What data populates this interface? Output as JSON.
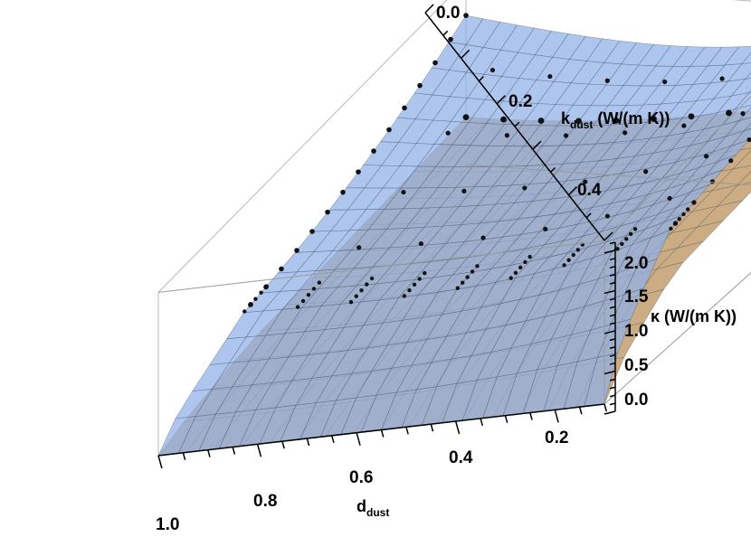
{
  "chart_data": {
    "type": "surface3d",
    "axes": {
      "d": {
        "label_main": "d",
        "label_sub": "dust",
        "range": [
          0.1,
          1.0
        ],
        "ticks": [
          {
            "value": 1.0,
            "label": "1.0"
          },
          {
            "value": 0.8,
            "label": "0.8"
          },
          {
            "value": 0.6,
            "label": "0.6"
          },
          {
            "value": 0.4,
            "label": "0.4"
          },
          {
            "value": 0.2,
            "label": "0.2"
          }
        ]
      },
      "k": {
        "label_main": "k",
        "label_sub": "dust",
        "label_unit": " (W/(m K))",
        "range": [
          0.0,
          0.5
        ],
        "ticks": [
          {
            "value": 0.0,
            "label": "0.0"
          },
          {
            "value": 0.2,
            "label": "0.2"
          },
          {
            "value": 0.4,
            "label": "0.4"
          }
        ]
      },
      "kappa": {
        "label": "κ (W/(m K))",
        "range": [
          0.0,
          2.0
        ],
        "ticks": [
          {
            "value": 0.0,
            "label": "0.0"
          },
          {
            "value": 0.5,
            "label": "0.5"
          },
          {
            "value": 1.0,
            "label": "1.0"
          },
          {
            "value": 1.5,
            "label": "1.5"
          },
          {
            "value": 2.0,
            "label": "2.0"
          }
        ]
      }
    },
    "surfaces": [
      {
        "color": "#8fb0e8",
        "grid": true,
        "kappa_range": [
          0.0,
          2.1
        ]
      },
      {
        "color": "#c9a97c",
        "grid": true,
        "kappa_range": [
          0.0,
          0.85
        ]
      }
    ],
    "box": true,
    "grid_ticks": true
  }
}
